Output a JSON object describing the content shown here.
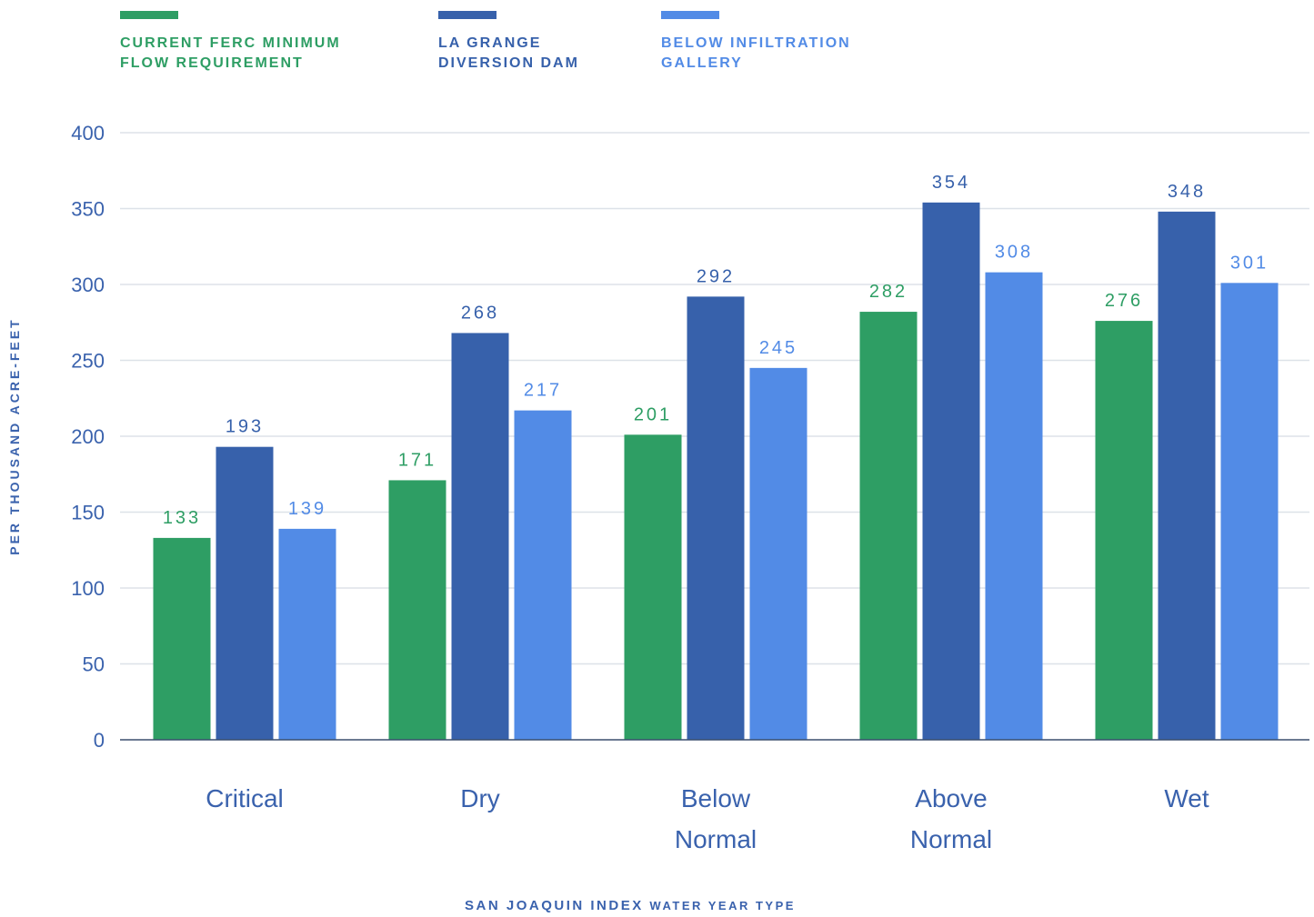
{
  "chart_data": {
    "type": "bar",
    "categories": [
      "Critical",
      "Dry",
      "Below Normal",
      "Above Normal",
      "Wet"
    ],
    "series": [
      {
        "name": "CURRENT FERC MINIMUM FLOW REQUIREMENT",
        "color": "#2e9e64",
        "values": [
          133,
          171,
          201,
          282,
          276
        ]
      },
      {
        "name": "LA GRANGE DIVERSION DAM",
        "color": "#3761ab",
        "values": [
          193,
          268,
          292,
          354,
          348
        ]
      },
      {
        "name": "BELOW INFILTRATION GALLERY",
        "color": "#528be6",
        "values": [
          139,
          217,
          245,
          308,
          301
        ]
      }
    ],
    "ylabel": "PER THOUSAND ACRE-FEET",
    "xlabel_main": "SAN JOAQUIN INDEX",
    "xlabel_sub": "WATER YEAR TYPE",
    "ylim": [
      0,
      400
    ],
    "yticks": [
      0,
      50,
      100,
      150,
      200,
      250,
      300,
      350,
      400
    ],
    "grid": true,
    "legend_position": "top-left",
    "axis_text_color": "#3a62ad"
  }
}
